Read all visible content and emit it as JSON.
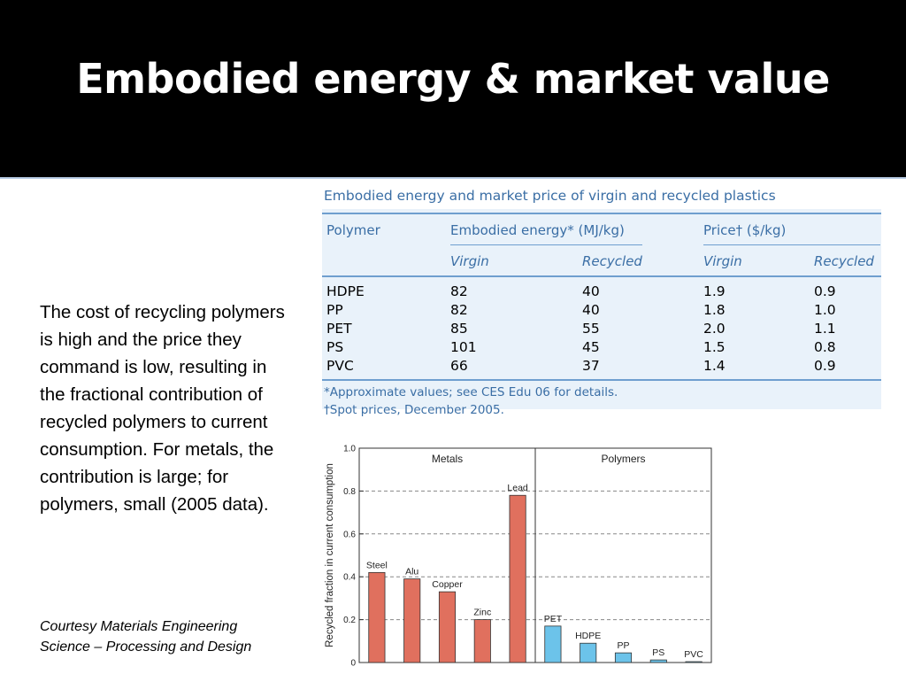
{
  "slide": {
    "title": "Embodied energy & market value",
    "description": "The cost of recycling polymers is high and the price they command is low, resulting in the fractional contribution of recycled polymers to current consumption. For metals, the contribution is large; for polymers, small (2005 data).",
    "courtesy": "Courtesy Materials Engineering Science – Processing and Design"
  },
  "table": {
    "title": "Embodied energy and market price of virgin and recycled plastics",
    "col_polymer": "Polymer",
    "col_energy": "Embodied energy* (MJ/kg)",
    "col_price": "Price† ($/kg)",
    "sub_virgin": "Virgin",
    "sub_recycled": "Recycled",
    "rows": [
      {
        "polymer": "HDPE",
        "energy_virgin": "82",
        "energy_recycled": "40",
        "price_virgin": "1.9",
        "price_recycled": "0.9"
      },
      {
        "polymer": "PP",
        "energy_virgin": "82",
        "energy_recycled": "40",
        "price_virgin": "1.8",
        "price_recycled": "1.0"
      },
      {
        "polymer": "PET",
        "energy_virgin": "85",
        "energy_recycled": "55",
        "price_virgin": "2.0",
        "price_recycled": "1.1"
      },
      {
        "polymer": "PS",
        "energy_virgin": "101",
        "energy_recycled": "45",
        "price_virgin": "1.5",
        "price_recycled": "0.8"
      },
      {
        "polymer": "PVC",
        "energy_virgin": "66",
        "energy_recycled": "37",
        "price_virgin": "1.4",
        "price_recycled": "0.9"
      }
    ],
    "footnote1": "*Approximate values; see CES Edu 06 for details.",
    "footnote2": "†Spot prices, December 2005."
  },
  "chart_data": {
    "type": "bar",
    "ylabel": "Recycled fraction in current consumption",
    "ylim": [
      0,
      1.0
    ],
    "yticks": [
      "0",
      "0.2",
      "0.4",
      "0.6",
      "0.8",
      "1.0"
    ],
    "groups": [
      {
        "name": "Metals",
        "color": "#e0705e",
        "bars": [
          {
            "label": "Steel",
            "value": 0.42
          },
          {
            "label": "Alu",
            "value": 0.39
          },
          {
            "label": "Copper",
            "value": 0.33
          },
          {
            "label": "Zinc",
            "value": 0.2
          },
          {
            "label": "Lead",
            "value": 0.78
          }
        ]
      },
      {
        "name": "Polymers",
        "color": "#6cc3ea",
        "bars": [
          {
            "label": "PET",
            "value": 0.17
          },
          {
            "label": "HDPE",
            "value": 0.09
          },
          {
            "label": "PP",
            "value": 0.045
          },
          {
            "label": "PS",
            "value": 0.012
          },
          {
            "label": "PVC",
            "value": 0.004
          }
        ]
      }
    ],
    "grid": true
  }
}
